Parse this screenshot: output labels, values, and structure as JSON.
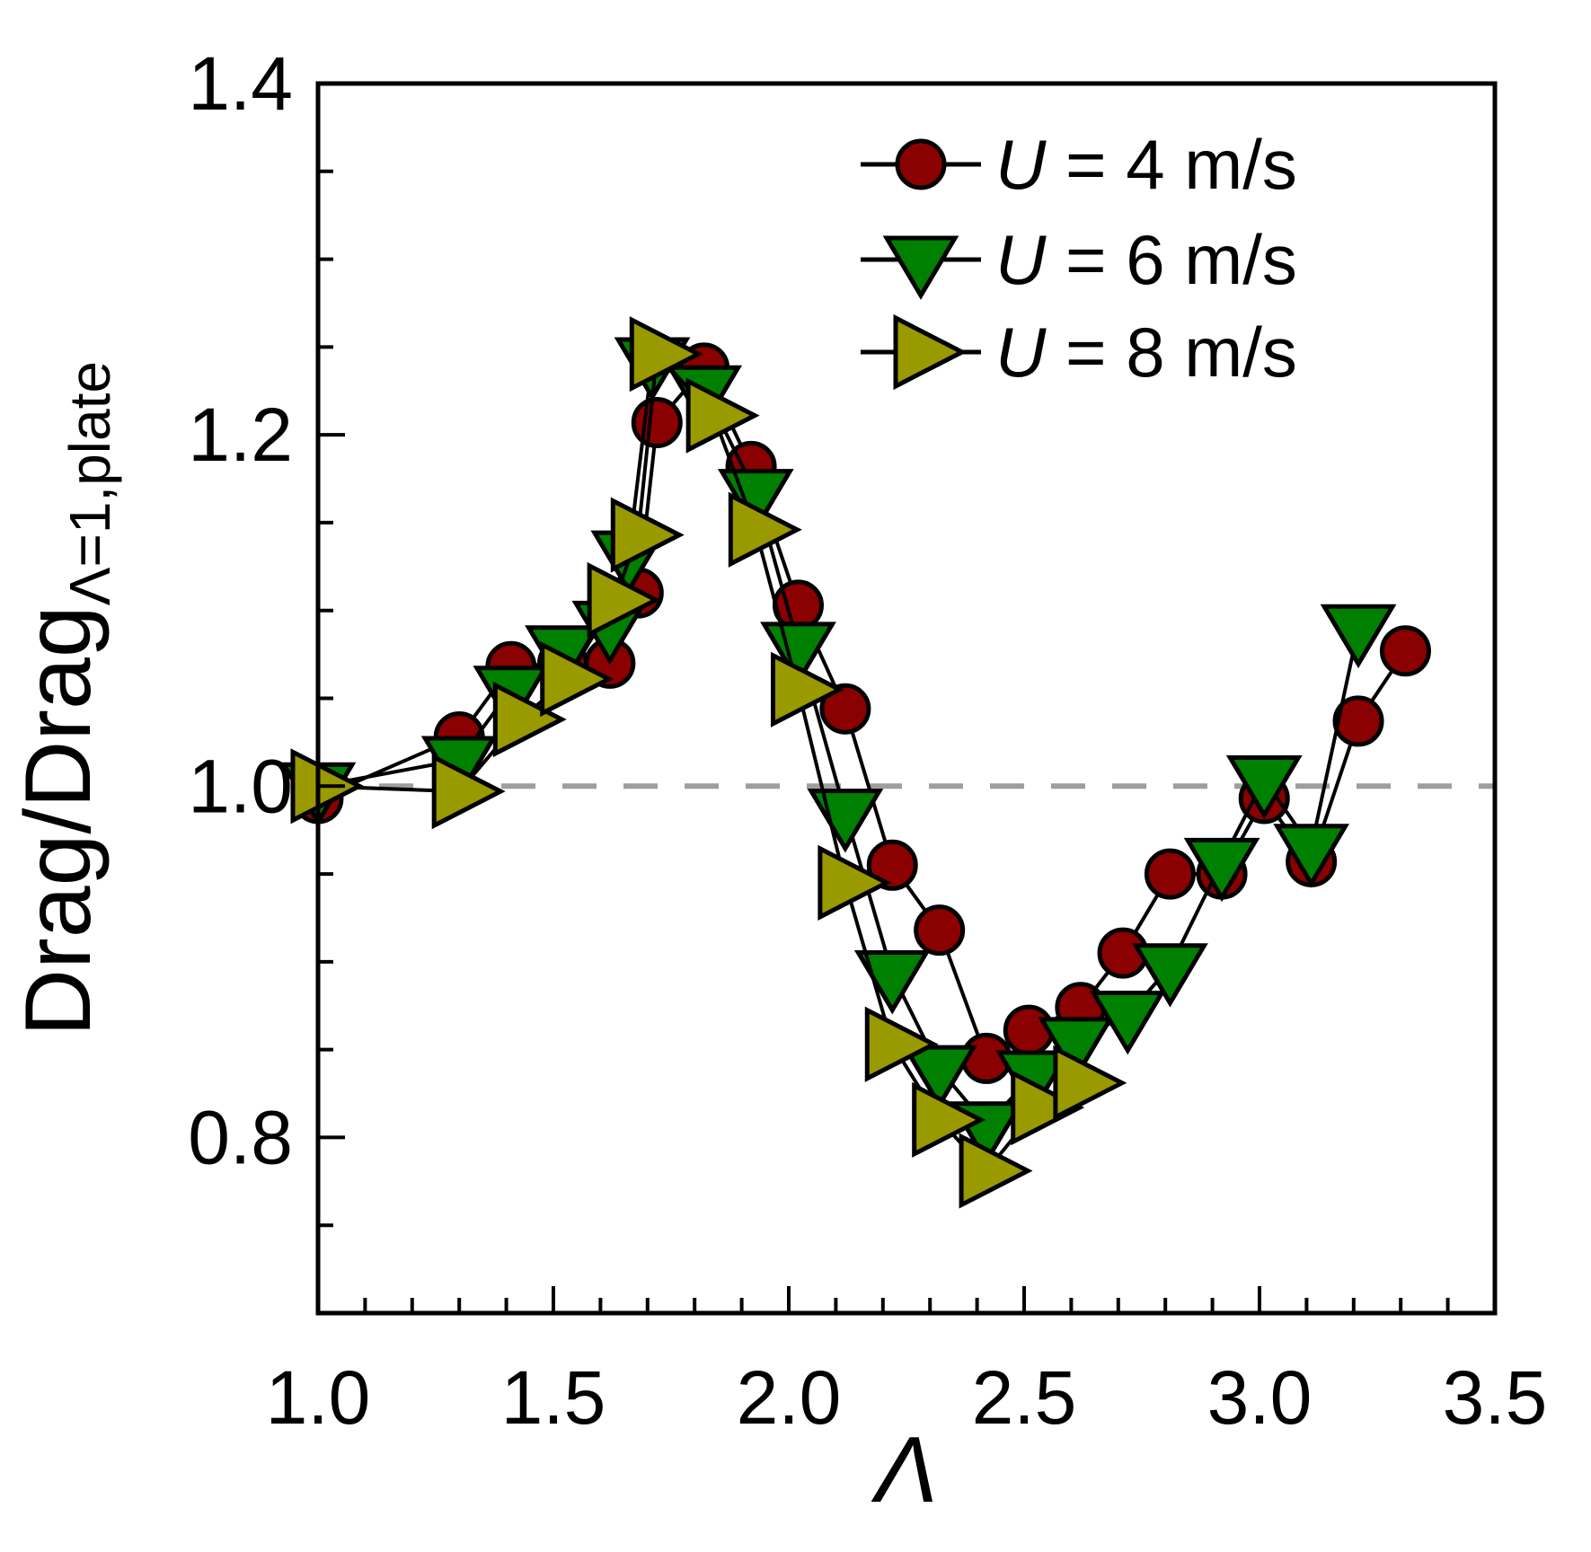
{
  "chart_data": {
    "type": "line",
    "title": "",
    "xlabel": "Λ",
    "ylabel_main": "Drag/Drag",
    "ylabel_sub": "Λ=1,plate",
    "xlim": [
      1.0,
      3.5
    ],
    "ylim": [
      0.7,
      1.4
    ],
    "x_major_ticks": [
      1.0,
      1.5,
      2.0,
      2.5,
      3.0,
      3.5
    ],
    "x_minor_step": 0.1,
    "y_major_ticks": [
      0.8,
      1.0,
      1.2,
      1.4
    ],
    "y_minor_step": 0.05,
    "x_tick_decimals": 1,
    "y_tick_decimals": 1,
    "grid": false,
    "legend_position": "top-right",
    "background_color": "#ffffff",
    "axis_color": "#000000",
    "line_color": "#000000",
    "reference_line": {
      "y": 1.0,
      "color": "#9e9e9e",
      "style": "dashed"
    },
    "series": [
      {
        "name": "U = 4 m/s",
        "label_var": "U",
        "label_rest": " = 4 m/s",
        "marker": "circle",
        "color": "#8B0000",
        "points": [
          [
            1.0,
            0.993
          ],
          [
            1.3,
            1.028
          ],
          [
            1.41,
            1.068
          ],
          [
            1.52,
            1.07
          ],
          [
            1.62,
            1.07
          ],
          [
            1.68,
            1.11
          ],
          [
            1.72,
            1.207
          ],
          [
            1.82,
            1.238
          ],
          [
            1.92,
            1.182
          ],
          [
            2.02,
            1.103
          ],
          [
            2.12,
            1.044
          ],
          [
            2.22,
            0.955
          ],
          [
            2.32,
            0.918
          ],
          [
            2.42,
            0.845
          ],
          [
            2.51,
            0.861
          ],
          [
            2.62,
            0.874
          ],
          [
            2.71,
            0.905
          ],
          [
            2.81,
            0.95
          ],
          [
            2.92,
            0.95
          ],
          [
            3.01,
            0.993
          ],
          [
            3.11,
            0.957
          ],
          [
            3.21,
            1.037
          ],
          [
            3.31,
            1.077
          ]
        ]
      },
      {
        "name": "U = 6 m/s",
        "label_var": "U",
        "label_rest": " = 6 m/s",
        "marker": "triangle-down",
        "color": "#008000",
        "points": [
          [
            1.0,
            1.0
          ],
          [
            1.3,
            1.015
          ],
          [
            1.41,
            1.055
          ],
          [
            1.52,
            1.078
          ],
          [
            1.62,
            1.092
          ],
          [
            1.66,
            1.132
          ],
          [
            1.71,
            1.242
          ],
          [
            1.82,
            1.226
          ],
          [
            1.93,
            1.167
          ],
          [
            2.02,
            1.08
          ],
          [
            2.12,
            0.985
          ],
          [
            2.22,
            0.893
          ],
          [
            2.32,
            0.839
          ],
          [
            2.42,
            0.807
          ],
          [
            2.52,
            0.836
          ],
          [
            2.61,
            0.855
          ],
          [
            2.72,
            0.87
          ],
          [
            2.81,
            0.897
          ],
          [
            2.92,
            0.957
          ],
          [
            3.01,
            1.004
          ],
          [
            3.11,
            0.965
          ],
          [
            3.21,
            1.09
          ]
        ]
      },
      {
        "name": "U = 8 m/s",
        "label_var": "U",
        "label_rest": " = 8 m/s",
        "marker": "triangle-right",
        "color": "#999900",
        "points": [
          [
            1.0,
            1.0
          ],
          [
            1.3,
            0.997
          ],
          [
            1.43,
            1.038
          ],
          [
            1.53,
            1.061
          ],
          [
            1.63,
            1.106
          ],
          [
            1.68,
            1.143
          ],
          [
            1.72,
            1.246
          ],
          [
            1.84,
            1.211
          ],
          [
            1.93,
            1.146
          ],
          [
            2.02,
            1.055
          ],
          [
            2.12,
            0.945
          ],
          [
            2.22,
            0.853
          ],
          [
            2.32,
            0.81
          ],
          [
            2.42,
            0.781
          ],
          [
            2.53,
            0.817
          ],
          [
            2.62,
            0.831
          ]
        ]
      }
    ]
  }
}
